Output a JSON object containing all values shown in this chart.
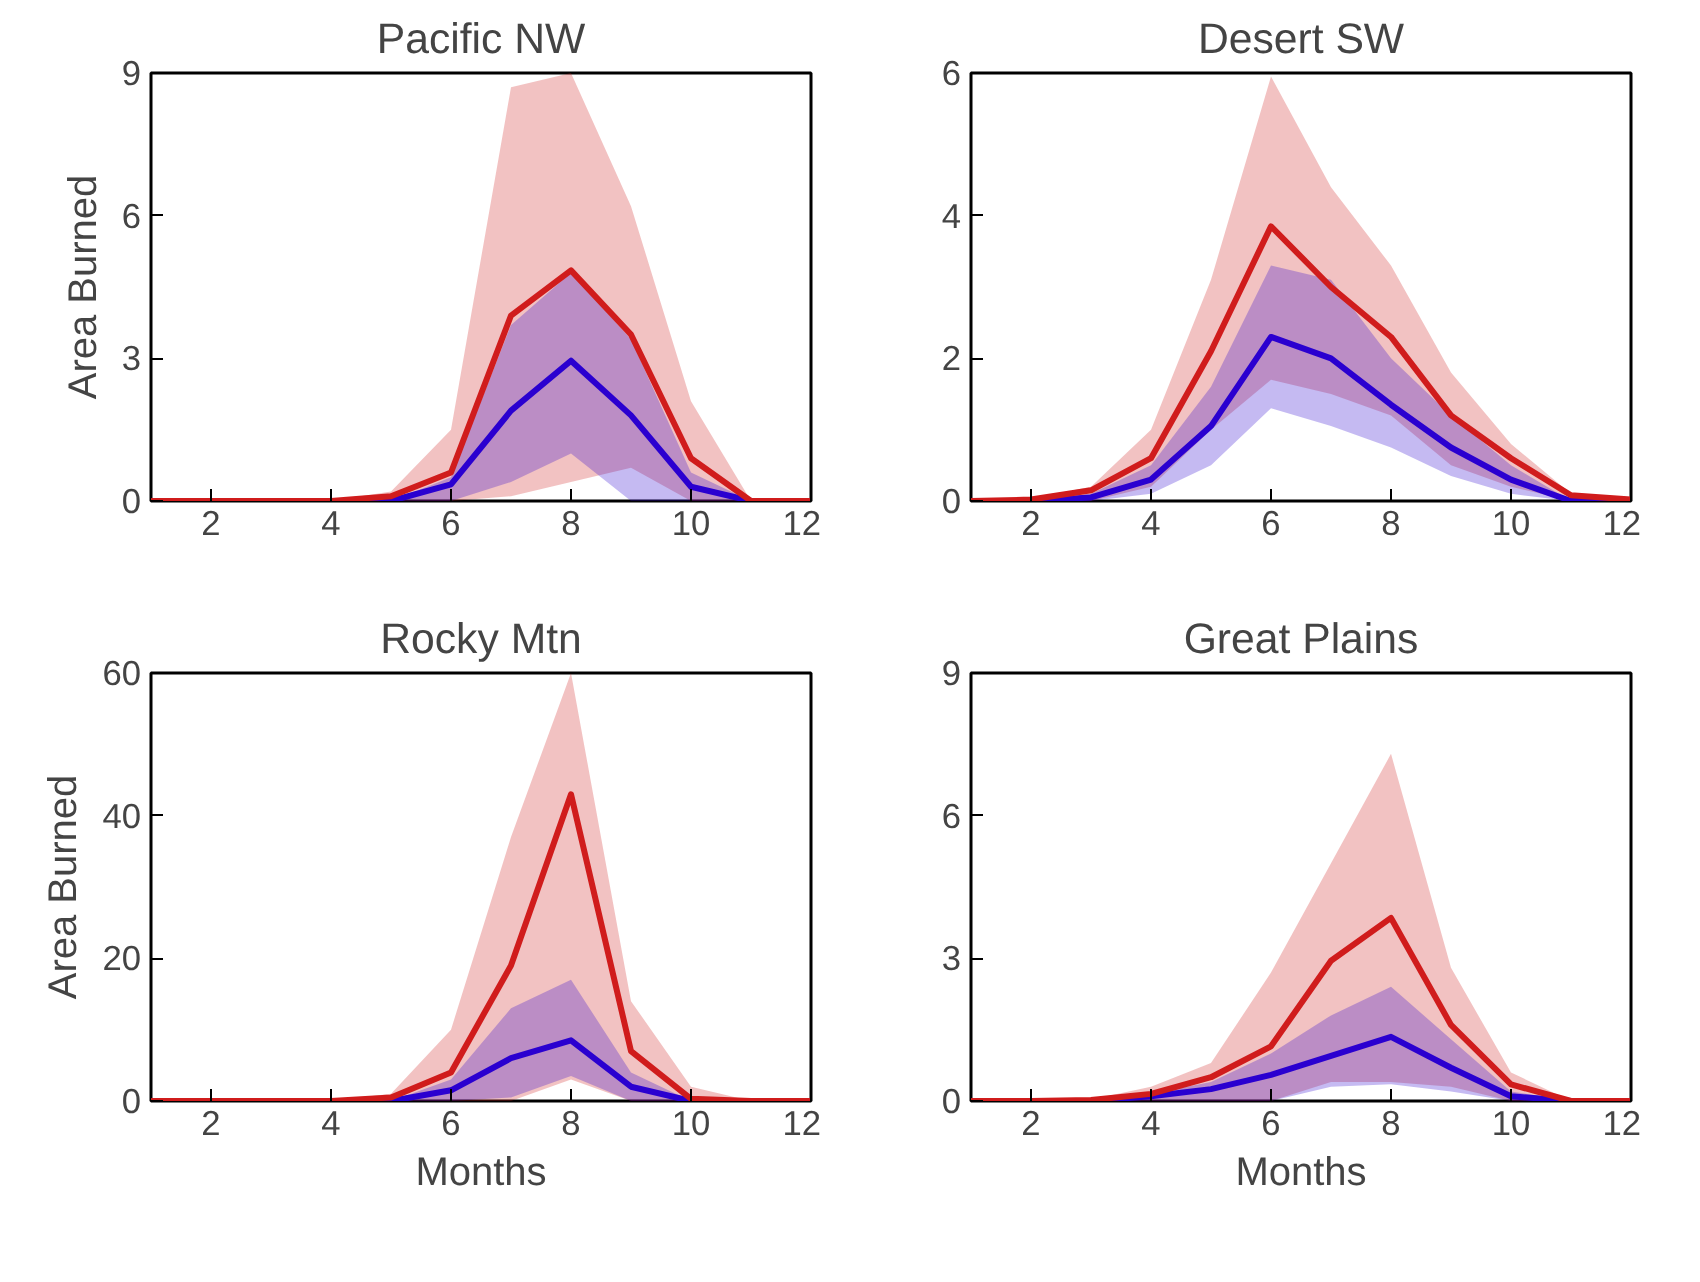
{
  "chart_data": [
    {
      "type": "line",
      "title": "Pacific NW",
      "ylabel": "Area Burned",
      "x": [
        1,
        2,
        3,
        4,
        5,
        6,
        7,
        8,
        9,
        10,
        11,
        12
      ],
      "xlim": [
        1,
        12
      ],
      "xticks": [
        2,
        4,
        6,
        8,
        10,
        12
      ],
      "ylim": [
        0,
        9
      ],
      "yticks": [
        0,
        3,
        6,
        9
      ],
      "grid": false,
      "series": [
        {
          "color": "#d01c1c",
          "values": [
            0,
            0,
            0,
            0,
            0.1,
            0.6,
            3.9,
            4.85,
            3.5,
            0.9,
            0,
            0
          ],
          "lower": [
            0,
            0,
            0,
            0,
            0,
            0,
            0.1,
            0.4,
            0.7,
            0,
            0,
            0
          ],
          "upper": [
            0,
            0,
            0,
            0,
            0.2,
            1.5,
            8.7,
            9,
            6.2,
            2.1,
            0,
            0
          ]
        },
        {
          "color": "#2a00d0",
          "values": [
            null,
            null,
            null,
            0,
            0,
            0.35,
            1.9,
            2.95,
            1.8,
            0.3,
            0,
            0
          ],
          "lower": [
            0,
            0,
            0,
            0,
            0,
            0,
            0.4,
            1.0,
            0,
            0,
            0,
            0
          ],
          "upper": [
            0,
            0,
            0,
            0,
            0,
            0.5,
            3.7,
            4.8,
            3.4,
            0.6,
            0,
            0
          ]
        }
      ]
    },
    {
      "type": "line",
      "title": "Desert SW",
      "x": [
        1,
        2,
        3,
        4,
        5,
        6,
        7,
        8,
        9,
        10,
        11,
        12
      ],
      "xlim": [
        1,
        12
      ],
      "xticks": [
        2,
        4,
        6,
        8,
        10,
        12
      ],
      "ylim": [
        0,
        6
      ],
      "yticks": [
        0,
        2,
        4,
        6
      ],
      "grid": false,
      "series": [
        {
          "color": "#d01c1c",
          "values": [
            0,
            0.02,
            0.15,
            0.6,
            2.1,
            3.85,
            3.0,
            2.3,
            1.2,
            0.6,
            0.08,
            0.02
          ],
          "lower": [
            0,
            0,
            0,
            0.2,
            1.0,
            1.7,
            1.5,
            1.2,
            0.5,
            0.2,
            0,
            0
          ],
          "upper": [
            0,
            0.03,
            0.2,
            1.0,
            3.1,
            5.95,
            4.4,
            3.3,
            1.8,
            0.8,
            0.1,
            0.03
          ]
        },
        {
          "color": "#2a00d0",
          "values": [
            0,
            0,
            0.05,
            0.3,
            1.05,
            2.3,
            2.0,
            1.35,
            0.75,
            0.3,
            0,
            0
          ],
          "lower": [
            0,
            0,
            0,
            0.1,
            0.5,
            1.3,
            1.05,
            0.75,
            0.35,
            0.1,
            0,
            0
          ],
          "upper": [
            0,
            0,
            0.1,
            0.5,
            1.6,
            3.3,
            3.1,
            2.0,
            1.2,
            0.5,
            0,
            0
          ]
        }
      ]
    },
    {
      "type": "line",
      "title": "Rocky Mtn",
      "ylabel": "Area Burned",
      "xlabel": "Months",
      "x": [
        1,
        2,
        3,
        4,
        5,
        6,
        7,
        8,
        9,
        10,
        11,
        12
      ],
      "xlim": [
        1,
        12
      ],
      "xticks": [
        2,
        4,
        6,
        8,
        10,
        12
      ],
      "ylim": [
        0,
        60
      ],
      "yticks": [
        0,
        20,
        40,
        60
      ],
      "grid": false,
      "series": [
        {
          "color": "#d01c1c",
          "values": [
            0,
            0,
            0,
            0,
            0.5,
            4,
            19,
            43,
            7,
            0.3,
            0,
            0
          ],
          "lower": [
            0,
            0,
            0,
            0,
            0,
            0,
            0,
            3,
            0,
            0,
            0,
            0
          ],
          "upper": [
            0,
            0,
            0,
            0,
            1,
            10,
            37,
            60,
            14,
            2,
            0,
            0
          ]
        },
        {
          "color": "#2a00d0",
          "values": [
            null,
            null,
            null,
            0,
            0,
            1.5,
            6,
            8.5,
            2,
            0,
            0,
            0
          ],
          "lower": [
            0,
            0,
            0,
            0,
            0,
            0,
            0.5,
            3.5,
            0,
            0,
            0,
            0
          ],
          "upper": [
            0,
            0,
            0,
            0,
            0,
            3,
            13,
            17,
            4,
            0,
            0,
            0
          ]
        }
      ]
    },
    {
      "type": "line",
      "title": "Great Plains",
      "xlabel": "Months",
      "x": [
        1,
        2,
        3,
        4,
        5,
        6,
        7,
        8,
        9,
        10,
        11,
        12
      ],
      "xlim": [
        1,
        12
      ],
      "xticks": [
        2,
        4,
        6,
        8,
        10,
        12
      ],
      "ylim": [
        0,
        9
      ],
      "yticks": [
        0,
        3,
        6,
        9
      ],
      "grid": false,
      "series": [
        {
          "color": "#d01c1c",
          "values": [
            0,
            0,
            0.02,
            0.15,
            0.5,
            1.15,
            2.95,
            3.85,
            1.6,
            0.35,
            0,
            0
          ],
          "lower": [
            0,
            0,
            0,
            0,
            0,
            0,
            0.4,
            0.4,
            0.3,
            0,
            0,
            0
          ],
          "upper": [
            0,
            0,
            0.03,
            0.3,
            0.8,
            2.7,
            5.0,
            7.3,
            2.8,
            0.6,
            0,
            0
          ]
        },
        {
          "color": "#2a00d0",
          "values": [
            0,
            0,
            0,
            0.1,
            0.25,
            0.55,
            0.95,
            1.35,
            0.7,
            0.1,
            0,
            0
          ],
          "lower": [
            0,
            0,
            0,
            0,
            0,
            0,
            0.3,
            0.35,
            0.2,
            0,
            0,
            0
          ],
          "upper": [
            0,
            0,
            0,
            0.15,
            0.4,
            1.0,
            1.8,
            2.4,
            1.3,
            0.2,
            0,
            0
          ]
        }
      ]
    }
  ]
}
